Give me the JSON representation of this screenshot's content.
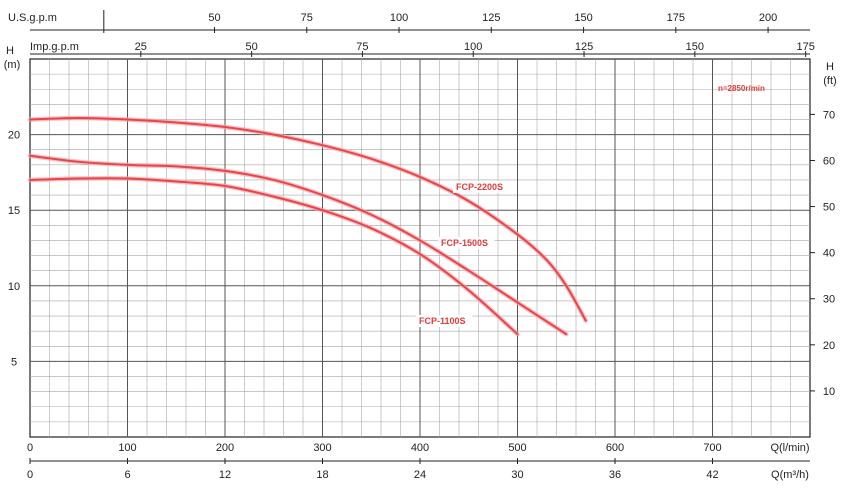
{
  "chart_data": {
    "type": "line",
    "speed_note": "n=2850r/min",
    "colors": {
      "curve": "#e8454a",
      "curve_glow": "#f6a3a6",
      "grid_major": "#555555",
      "grid_minor": "#a8a8a8",
      "axis": "#222222",
      "label_bg": "#ffffff"
    },
    "x_primary": {
      "label": "Q(l/min)",
      "range": [
        0,
        800
      ],
      "ticks": [
        "0",
        "100",
        "200",
        "300",
        "400",
        "500",
        "600",
        "700"
      ]
    },
    "x_secondary": {
      "label": "Q(m³/h)",
      "ticks": [
        "0",
        "6",
        "12",
        "18",
        "24",
        "30",
        "36",
        "42"
      ]
    },
    "top_axis_us": {
      "label": "U.S.g.p.m",
      "ticks": [
        "50",
        "75",
        "100",
        "125",
        "150",
        "175",
        "200"
      ]
    },
    "top_axis_imp": {
      "label": "Imp.g.p.m",
      "ticks": [
        "25",
        "50",
        "75",
        "100",
        "125",
        "150",
        "175"
      ]
    },
    "y_left": {
      "label_top": "H",
      "label_unit": "(m)",
      "range": [
        0,
        25
      ],
      "ticks": [
        "5",
        "10",
        "15",
        "20"
      ]
    },
    "y_right": {
      "label_top": "H",
      "label_unit": "(ft)",
      "ticks": [
        "10",
        "20",
        "30",
        "40",
        "50",
        "60",
        "70"
      ]
    },
    "series": [
      {
        "name": "FCP-2200S",
        "x": [
          0,
          50,
          100,
          150,
          200,
          250,
          300,
          350,
          400,
          450,
          500,
          530,
          550,
          570
        ],
        "y": [
          21.0,
          21.1,
          21.0,
          20.8,
          20.5,
          20.0,
          19.3,
          18.4,
          17.2,
          15.6,
          13.4,
          11.7,
          10.0,
          7.7
        ]
      },
      {
        "name": "FCP-1500S",
        "x": [
          0,
          50,
          100,
          150,
          200,
          250,
          300,
          350,
          400,
          450,
          500,
          550
        ],
        "y": [
          18.6,
          18.2,
          18.0,
          17.9,
          17.6,
          17.0,
          16.0,
          14.7,
          13.0,
          11.0,
          8.9,
          6.8
        ]
      },
      {
        "name": "FCP-1100S",
        "x": [
          0,
          50,
          100,
          150,
          200,
          250,
          300,
          350,
          400,
          450,
          500
        ],
        "y": [
          17.0,
          17.1,
          17.1,
          16.9,
          16.6,
          15.9,
          15.0,
          13.8,
          12.1,
          9.7,
          6.8
        ]
      }
    ]
  }
}
